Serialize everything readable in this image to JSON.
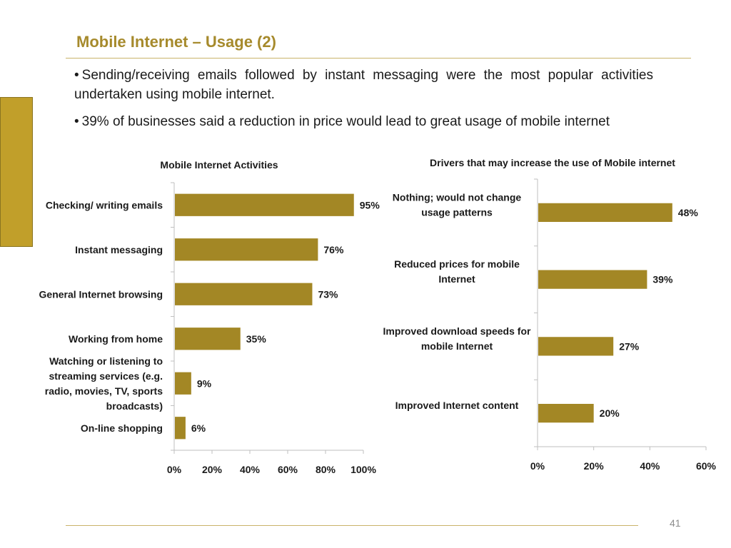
{
  "slide": {
    "title": "Mobile Internet – Usage (2)",
    "bullets": [
      "Sending/receiving emails followed by instant messaging were the most popular activities undertaken using mobile internet.",
      "39% of businesses said a reduction in price would lead to great usage of mobile internet"
    ],
    "bullet_symbol": "•",
    "page_number": "41",
    "accent_color": "#a68a2c",
    "bar_color": "#a38725"
  },
  "chart_data": [
    {
      "type": "bar",
      "orientation": "horizontal",
      "title": "Mobile Internet Activities",
      "categories": [
        "Checking/ writing emails",
        "Instant messaging",
        "General Internet browsing",
        "Working from home",
        "Watching or listening to streaming services (e.g. radio, movies, TV, sports broadcasts)",
        "On-line shopping"
      ],
      "values": [
        95,
        76,
        73,
        35,
        9,
        6
      ],
      "data_labels": [
        "95%",
        "76%",
        "73%",
        "35%",
        "9%",
        "6%"
      ],
      "xlim": [
        0,
        100
      ],
      "xticks": [
        "0%",
        "20%",
        "40%",
        "60%",
        "80%",
        "100%"
      ],
      "grid": false,
      "legend": "none"
    },
    {
      "type": "bar",
      "orientation": "horizontal",
      "title": "Drivers that may increase the use of Mobile internet",
      "categories": [
        "Nothing; would not change usage patterns",
        "Reduced prices for mobile Internet",
        "Improved download speeds for mobile Internet",
        "Improved Internet content"
      ],
      "values": [
        48,
        39,
        27,
        20
      ],
      "data_labels": [
        "48%",
        "39%",
        "27%",
        "20%"
      ],
      "xlim": [
        0,
        60
      ],
      "xticks": [
        "0%",
        "20%",
        "40%",
        "60%"
      ],
      "grid": false,
      "legend": "none"
    }
  ]
}
